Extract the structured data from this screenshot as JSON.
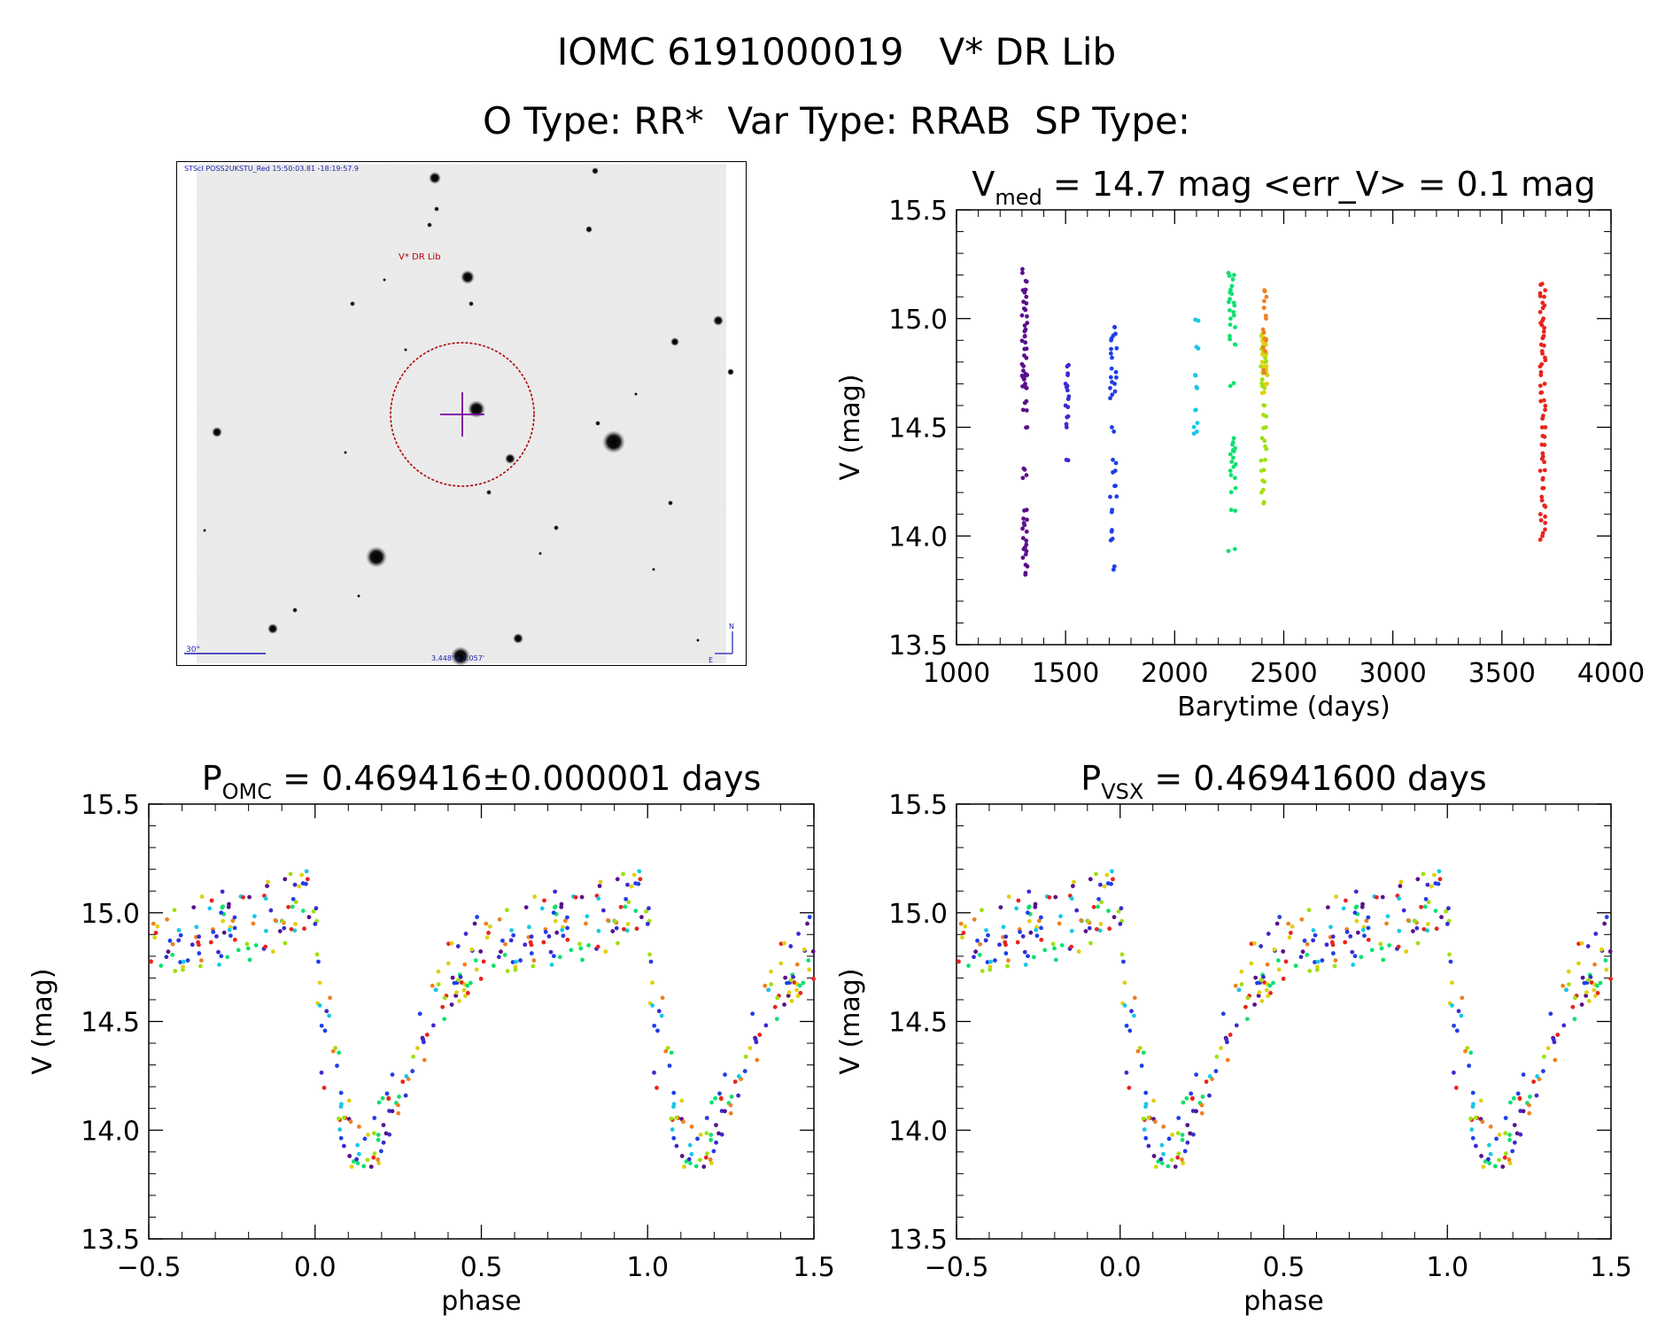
{
  "header": {
    "line1": "IOMC 6191000019   V* DR Lib",
    "line2": "O Type: RR*  Var Type: RRAB  SP Type:"
  },
  "image_panel": {
    "header_text": "STScI POSS2UKSTU_Red 15:50:03.81 -18:19:57.9",
    "target_label": "V* DR Lib",
    "scale_label": "30\"",
    "size_label": "3.448' x 3.057'",
    "compass_n": "N",
    "compass_e": "E",
    "colors": {
      "circle": "#b00000",
      "cross": "#7a00a0",
      "label": "#b00000",
      "text": "#1b1bb0"
    }
  },
  "chart_data": [
    {
      "type": "scatter",
      "title_main": "V",
      "title_sub": "med",
      "title_rest": " = 14.7 mag <err_V> = 0.1 mag",
      "xlabel": "Barytime (days)",
      "ylabel": "V (mag)",
      "xlim": [
        1000,
        4000
      ],
      "ylim": [
        15.5,
        13.5
      ],
      "xticks": [
        "1000",
        "1500",
        "2000",
        "2500",
        "3000",
        "3500",
        "4000"
      ],
      "yticks": [
        "13.5",
        "14.0",
        "14.5",
        "15.0",
        "15.5"
      ],
      "series": [
        {
          "color": "#5a0f8a",
          "x_range": [
            1300,
            1325
          ],
          "y_values": [
            13.83,
            13.86,
            13.9,
            13.93,
            13.96,
            13.99,
            14.02,
            14.05,
            14.08,
            14.12,
            14.28,
            14.31,
            14.5,
            14.58,
            14.62,
            14.68,
            14.7,
            14.72,
            14.73,
            14.74,
            14.76,
            14.79,
            14.83,
            14.86,
            14.89,
            14.92,
            14.95,
            14.98,
            15.01,
            15.04,
            15.07,
            15.1,
            15.13,
            15.17,
            15.21
          ]
        },
        {
          "color": "#3a2bd0",
          "x_range": [
            1500,
            1515
          ],
          "y_values": [
            14.35,
            14.5,
            14.55,
            14.6,
            14.63,
            14.67,
            14.7,
            14.74,
            14.78
          ]
        },
        {
          "color": "#1f3fe6",
          "x_range": [
            1700,
            1735
          ],
          "y_values": [
            13.86,
            13.98,
            14.02,
            14.12,
            14.18,
            14.23,
            14.3,
            14.35,
            14.5,
            14.65,
            14.68,
            14.7,
            14.73,
            14.77,
            14.82,
            14.86,
            14.9,
            14.93,
            14.96
          ]
        },
        {
          "color": "#18c8e6",
          "x_range": [
            2085,
            2110
          ],
          "y_values": [
            14.48,
            14.52,
            14.58,
            14.68,
            14.74,
            14.87,
            14.99
          ]
        },
        {
          "color": "#10e070",
          "x_range": [
            2245,
            2280
          ],
          "y_values": [
            13.94,
            14.12,
            14.22,
            14.28,
            14.3,
            14.33,
            14.36,
            14.39,
            14.42,
            14.45,
            14.69,
            14.88,
            14.92,
            14.96,
            15.0,
            15.03,
            15.06,
            15.09,
            15.12,
            15.15,
            15.18,
            15.21
          ]
        },
        {
          "color": "#a0e010",
          "x_range": [
            2395,
            2420
          ],
          "y_values": [
            14.15,
            14.2,
            14.25,
            14.3,
            14.35,
            14.4,
            14.45,
            14.5,
            14.55,
            14.6,
            14.68,
            14.72,
            14.75,
            14.78,
            14.8,
            14.82,
            14.84,
            14.86,
            14.88,
            14.9,
            14.92
          ]
        },
        {
          "color": "#e0d010",
          "x_range": [
            2400,
            2425
          ],
          "y_values": [
            14.66,
            14.7,
            14.74,
            14.78,
            14.8,
            14.83,
            14.85,
            14.88,
            14.9,
            14.93
          ]
        },
        {
          "color": "#f08020",
          "x_range": [
            2405,
            2425
          ],
          "y_values": [
            14.75,
            14.85,
            14.9,
            14.95,
            15.0,
            15.05,
            15.1,
            15.13
          ]
        },
        {
          "color": "#e8241c",
          "x_range": [
            3675,
            3700
          ],
          "y_values": [
            14.0,
            14.03,
            14.06,
            14.1,
            14.14,
            14.18,
            14.22,
            14.26,
            14.3,
            14.34,
            14.38,
            14.42,
            14.46,
            14.5,
            14.54,
            14.58,
            14.62,
            14.66,
            14.7,
            14.74,
            14.78,
            14.82,
            14.85,
            14.88,
            14.91,
            14.94,
            14.97,
            15.0,
            15.03,
            15.06,
            15.1,
            15.13,
            15.16
          ]
        }
      ]
    },
    {
      "type": "scatter",
      "title_main": "P",
      "title_sub": "OMC",
      "title_rest": " = 0.469416±0.000001 days",
      "xlabel": "phase",
      "ylabel": "V (mag)",
      "xlim": [
        -0.5,
        1.5
      ],
      "ylim": [
        15.5,
        13.5
      ],
      "xticks": [
        "−0.5",
        "0.0",
        "0.5",
        "1.0",
        "1.5"
      ],
      "yticks": [
        "13.5",
        "14.0",
        "14.5",
        "15.0",
        "15.5"
      ],
      "light_curve": {
        "phase": [
          0.0,
          0.02,
          0.05,
          0.08,
          0.12,
          0.16,
          0.2,
          0.25,
          0.3,
          0.35,
          0.4,
          0.45,
          0.5,
          0.6,
          0.7,
          0.8,
          0.9,
          0.95,
          1.0
        ],
        "mag": [
          15.0,
          14.3,
          14.5,
          14.1,
          13.9,
          13.83,
          14.0,
          14.2,
          14.38,
          14.55,
          14.68,
          14.78,
          14.85,
          14.9,
          14.92,
          14.95,
          15.0,
          15.05,
          15.0
        ]
      },
      "series_colors": [
        "#5a0f8a",
        "#3a2bd0",
        "#1f3fe6",
        "#18c8e6",
        "#10e070",
        "#a0e010",
        "#e0d010",
        "#f08020",
        "#e8241c"
      ]
    },
    {
      "type": "scatter",
      "title_main": "P",
      "title_sub": "VSX",
      "title_rest": " = 0.46941600 days",
      "xlabel": "phase",
      "ylabel": "V (mag)",
      "xlim": [
        -0.5,
        1.5
      ],
      "ylim": [
        15.5,
        13.5
      ],
      "xticks": [
        "−0.5",
        "0.0",
        "0.5",
        "1.0",
        "1.5"
      ],
      "yticks": [
        "13.5",
        "14.0",
        "14.5",
        "15.0",
        "15.5"
      ],
      "light_curve": {
        "phase": [
          0.0,
          0.02,
          0.05,
          0.08,
          0.12,
          0.16,
          0.2,
          0.25,
          0.3,
          0.35,
          0.4,
          0.45,
          0.5,
          0.6,
          0.7,
          0.8,
          0.9,
          0.95,
          1.0
        ],
        "mag": [
          15.0,
          14.3,
          14.5,
          14.1,
          13.9,
          13.83,
          14.0,
          14.2,
          14.38,
          14.55,
          14.68,
          14.78,
          14.85,
          14.9,
          14.92,
          14.95,
          15.0,
          15.05,
          15.0
        ]
      },
      "series_colors": [
        "#5a0f8a",
        "#3a2bd0",
        "#1f3fe6",
        "#18c8e6",
        "#10e070",
        "#a0e010",
        "#e0d010",
        "#f08020",
        "#e8241c"
      ]
    }
  ]
}
